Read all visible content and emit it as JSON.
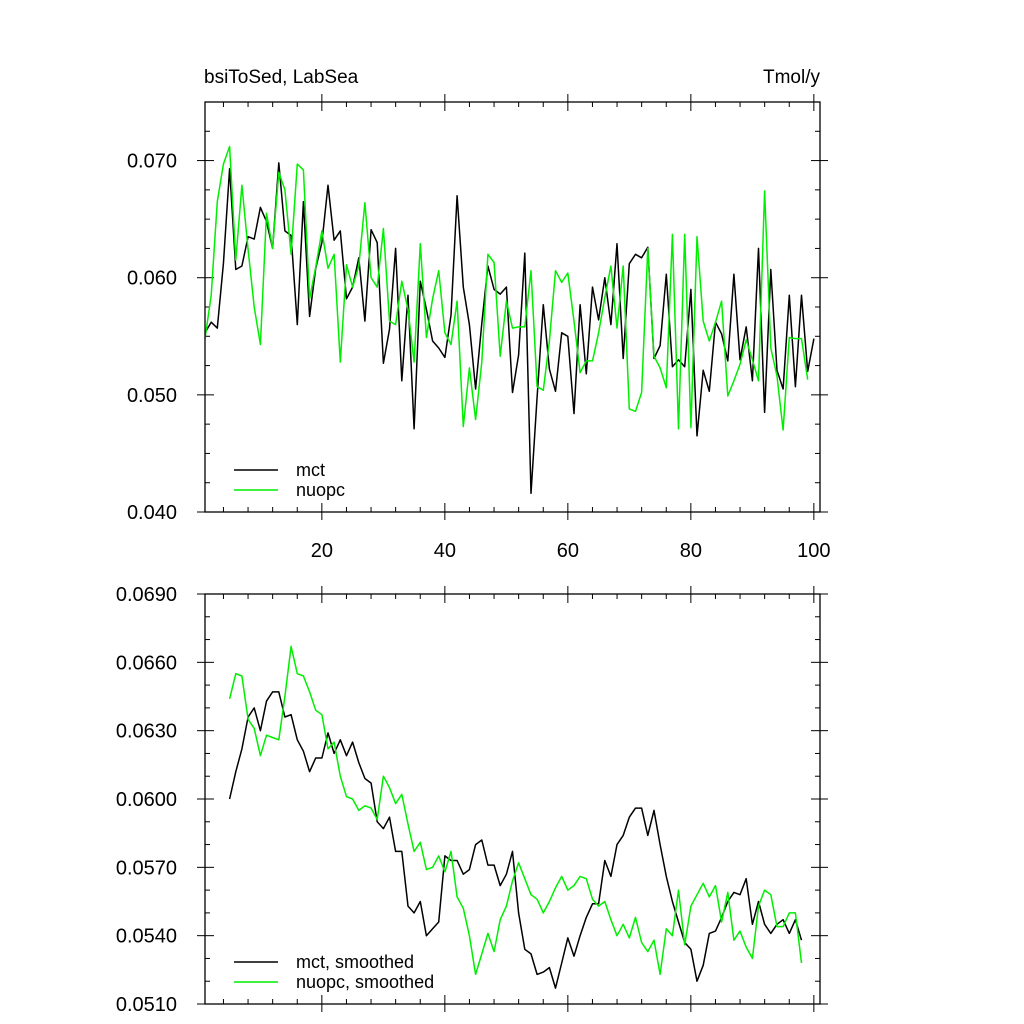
{
  "chart_data": [
    {
      "type": "line",
      "title_left": "bsiToSed, LabSea",
      "title_right": "Tmol/y",
      "xlim": [
        1,
        101
      ],
      "ylim": [
        0.04,
        0.075
      ],
      "xticks": [
        20,
        40,
        60,
        80,
        100
      ],
      "xtick_labels": [
        "20",
        "40",
        "60",
        "80",
        "100"
      ],
      "yticks": [
        0.04,
        0.05,
        0.06,
        0.07
      ],
      "ytick_labels": [
        "0.040",
        "0.050",
        "0.060",
        "0.070"
      ],
      "legend_position": "bottom-left",
      "x_start": 1,
      "series": [
        {
          "name": "mct",
          "color": "#000000",
          "values": [
            0.0553,
            0.0562,
            0.0557,
            0.0612,
            0.0693,
            0.0607,
            0.061,
            0.0635,
            0.0633,
            0.066,
            0.0648,
            0.0625,
            0.0698,
            0.064,
            0.0636,
            0.056,
            0.0665,
            0.0567,
            0.0608,
            0.063,
            0.0679,
            0.0632,
            0.064,
            0.0582,
            0.0592,
            0.0617,
            0.0563,
            0.0641,
            0.063,
            0.0527,
            0.0556,
            0.0625,
            0.0512,
            0.0585,
            0.0471,
            0.0597,
            0.0573,
            0.0546,
            0.054,
            0.0532,
            0.0568,
            0.067,
            0.0592,
            0.056,
            0.0505,
            0.0561,
            0.061,
            0.059,
            0.0586,
            0.0592,
            0.0502,
            0.0534,
            0.0621,
            0.0416,
            0.0498,
            0.0577,
            0.0522,
            0.0503,
            0.0553,
            0.055,
            0.0484,
            0.0577,
            0.0518,
            0.0592,
            0.0564,
            0.06,
            0.056,
            0.0629,
            0.0531,
            0.0612,
            0.062,
            0.0617,
            0.0626,
            0.0531,
            0.0542,
            0.0603,
            0.0524,
            0.053,
            0.0524,
            0.059,
            0.0465,
            0.0521,
            0.0503,
            0.0562,
            0.0552,
            0.0529,
            0.0603,
            0.053,
            0.0558,
            0.0512,
            0.0625,
            0.0485,
            0.0607,
            0.0521,
            0.0505,
            0.0585,
            0.0507,
            0.0585,
            0.052,
            0.0548
          ]
        },
        {
          "name": "nuopc",
          "color": "#00ee00",
          "values": [
            0.0548,
            0.0585,
            0.0665,
            0.0697,
            0.0712,
            0.0615,
            0.0679,
            0.0624,
            0.0575,
            0.0543,
            0.0655,
            0.0625,
            0.069,
            0.0675,
            0.062,
            0.0697,
            0.0692,
            0.0582,
            0.0609,
            0.064,
            0.0608,
            0.062,
            0.0528,
            0.0611,
            0.0592,
            0.061,
            0.0664,
            0.06,
            0.0592,
            0.0642,
            0.0563,
            0.056,
            0.0597,
            0.0573,
            0.0528,
            0.0629,
            0.0549,
            0.0582,
            0.0606,
            0.0553,
            0.0543,
            0.058,
            0.0473,
            0.0523,
            0.0479,
            0.0528,
            0.062,
            0.0613,
            0.0533,
            0.058,
            0.0557,
            0.0558,
            0.0558,
            0.0606,
            0.0507,
            0.0504,
            0.0546,
            0.0606,
            0.0596,
            0.0604,
            0.0563,
            0.0519,
            0.0529,
            0.0529,
            0.0553,
            0.0583,
            0.061,
            0.0557,
            0.061,
            0.0488,
            0.0486,
            0.0502,
            0.0625,
            0.0533,
            0.0523,
            0.0506,
            0.0637,
            0.0471,
            0.0637,
            0.0472,
            0.0635,
            0.0563,
            0.0546,
            0.0562,
            0.058,
            0.0499,
            0.0512,
            0.0526,
            0.0547,
            0.053,
            0.0512,
            0.0674,
            0.054,
            0.0516,
            0.047,
            0.0549,
            0.0548,
            0.0548,
            0.0513
          ]
        }
      ]
    },
    {
      "type": "line",
      "xlim": [
        1,
        101
      ],
      "ylim": [
        0.051,
        0.069
      ],
      "xticks": [
        20,
        40,
        60,
        80,
        100
      ],
      "yticks": [
        0.051,
        0.054,
        0.057,
        0.06,
        0.063,
        0.066,
        0.069
      ],
      "ytick_labels": [
        "0.0510",
        "0.0540",
        "0.0570",
        "0.0600",
        "0.0630",
        "0.0660",
        "0.0690"
      ],
      "legend_position": "bottom-left",
      "x_start": 5,
      "series": [
        {
          "name": "mct, smoothed",
          "color": "#000000",
          "values": [
            0.06,
            0.0612,
            0.0622,
            0.0636,
            0.064,
            0.063,
            0.0643,
            0.0647,
            0.0647,
            0.0636,
            0.0637,
            0.0626,
            0.0621,
            0.0612,
            0.0618,
            0.0618,
            0.0629,
            0.062,
            0.0626,
            0.0619,
            0.0625,
            0.0616,
            0.0609,
            0.0607,
            0.059,
            0.0587,
            0.0592,
            0.0577,
            0.0577,
            0.0553,
            0.055,
            0.0555,
            0.054,
            0.0543,
            0.0546,
            0.0575,
            0.0573,
            0.0573,
            0.0567,
            0.0569,
            0.058,
            0.0582,
            0.0571,
            0.0571,
            0.0562,
            0.0567,
            0.0577,
            0.055,
            0.0534,
            0.0532,
            0.0523,
            0.0524,
            0.0526,
            0.0517,
            0.0528,
            0.0539,
            0.0531,
            0.054,
            0.0548,
            0.0554,
            0.0554,
            0.0573,
            0.0566,
            0.058,
            0.0584,
            0.0592,
            0.0596,
            0.0596,
            0.0584,
            0.0595,
            0.058,
            0.0566,
            0.0555,
            0.0546,
            0.0537,
            0.0534,
            0.052,
            0.0527,
            0.0541,
            0.0542,
            0.0548,
            0.0555,
            0.0559,
            0.0558,
            0.0565,
            0.0545,
            0.0555,
            0.0545,
            0.0541,
            0.0545,
            0.0547,
            0.0541,
            0.0547,
            0.0538
          ]
        },
        {
          "name": "nuopc, smoothed",
          "color": "#00ee00",
          "values": [
            0.0644,
            0.0655,
            0.0654,
            0.0635,
            0.0631,
            0.0619,
            0.0628,
            0.0627,
            0.0626,
            0.0645,
            0.0667,
            0.0655,
            0.0654,
            0.0647,
            0.0639,
            0.0637,
            0.0622,
            0.0625,
            0.061,
            0.0601,
            0.06,
            0.0595,
            0.0597,
            0.0596,
            0.0591,
            0.061,
            0.0605,
            0.0598,
            0.0602,
            0.0589,
            0.0577,
            0.0581,
            0.0569,
            0.057,
            0.0575,
            0.0568,
            0.0577,
            0.0557,
            0.0552,
            0.054,
            0.0523,
            0.0532,
            0.0541,
            0.0533,
            0.0547,
            0.0553,
            0.0564,
            0.0572,
            0.0565,
            0.0558,
            0.0556,
            0.055,
            0.0555,
            0.0561,
            0.0566,
            0.056,
            0.0562,
            0.0566,
            0.0565,
            0.0556,
            0.0553,
            0.0555,
            0.0547,
            0.054,
            0.0545,
            0.0539,
            0.0548,
            0.0537,
            0.0533,
            0.0538,
            0.0523,
            0.0543,
            0.054,
            0.056,
            0.0536,
            0.0553,
            0.0558,
            0.0563,
            0.0557,
            0.0562,
            0.0546,
            0.0559,
            0.0538,
            0.0542,
            0.0535,
            0.053,
            0.0553,
            0.056,
            0.0558,
            0.0544,
            0.0544,
            0.055,
            0.055,
            0.0528
          ]
        }
      ]
    }
  ]
}
